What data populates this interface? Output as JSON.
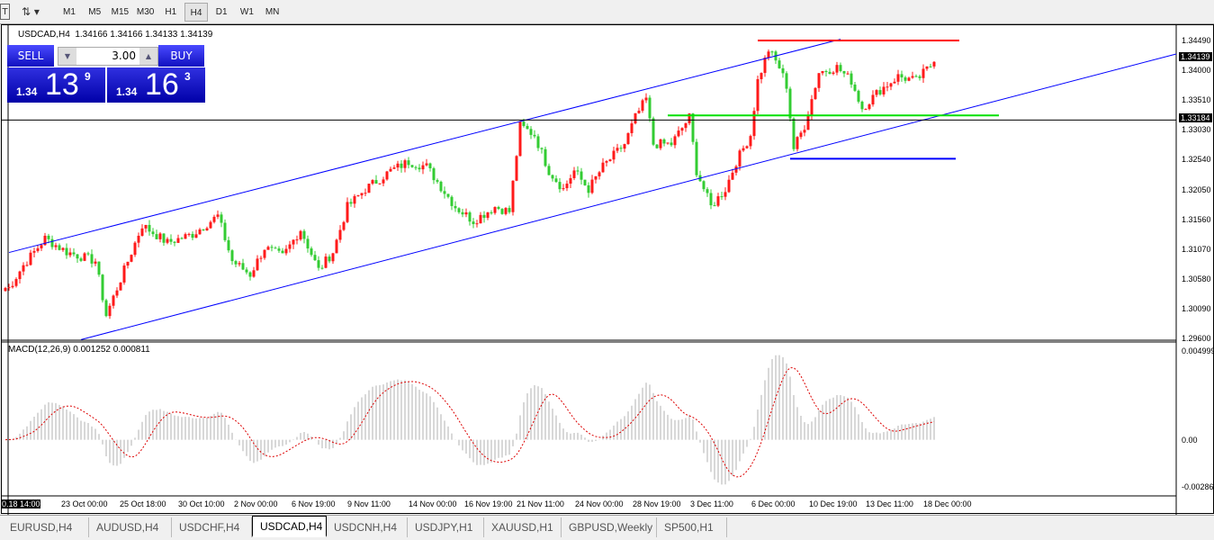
{
  "toolbar": {
    "timeframes": [
      "M1",
      "M5",
      "M15",
      "M30",
      "H1",
      "H4",
      "D1",
      "W1",
      "MN"
    ],
    "active": "H4"
  },
  "chart": {
    "info": "USDCAD,H4  1.34166 1.34166 1.34133 1.34139",
    "trade": {
      "sell_label": "SELL",
      "buy_label": "BUY",
      "lot": "3.00",
      "bid_prefix": "1.34",
      "bid_big": "13",
      "bid_small": "9",
      "ask_prefix": "1.34",
      "ask_big": "16",
      "ask_small": "3"
    },
    "price_labels": [
      "1.34490",
      "1.34000",
      "1.33510",
      "1.33030",
      "1.32540",
      "1.32050",
      "1.31560",
      "1.31070",
      "1.30580",
      "1.30090",
      "1.29600"
    ],
    "bid_tag": "1.34139",
    "line_tag": "1.33184",
    "macd_title": "MACD(12,26,9) 0.001252 0.000811",
    "macd_labels": [
      "0.004999",
      "0.00",
      "-0.002868"
    ],
    "time_labels": [
      "0.18 14:00",
      "23 Oct 00:00",
      "25 Oct 18:00",
      "30 Oct 10:00",
      "2 Nov 00:00",
      "6 Nov 19:00",
      "9 Nov 11:00",
      "14 Nov 00:00",
      "16 Nov 19:00",
      "21 Nov 11:00",
      "24 Nov 00:00",
      "28 Nov 19:00",
      "3 Dec 11:00",
      "6 Dec 00:00",
      "10 Dec 19:00",
      "13 Dec 11:00",
      "18 Dec 00:00"
    ]
  },
  "chart_data": {
    "type": "candlestick",
    "symbol": "USDCAD",
    "timeframe": "H4",
    "ylim": [
      1.296,
      1.3449
    ],
    "colors": {
      "up": "#ff1a1a",
      "down": "#33cc33",
      "macd_hist": "#b0b0b0",
      "macd_signal": "#dd0000"
    },
    "close_path": [
      [
        1,
        1.3043
      ],
      [
        5,
        1.308
      ],
      [
        11,
        1.3124
      ],
      [
        17,
        1.3102
      ],
      [
        25,
        1.3087
      ],
      [
        28,
        1.2998
      ],
      [
        32,
        1.3057
      ],
      [
        38,
        1.3146
      ],
      [
        45,
        1.3117
      ],
      [
        52,
        1.3131
      ],
      [
        59,
        1.3161
      ],
      [
        63,
        1.3087
      ],
      [
        68,
        1.3065
      ],
      [
        72,
        1.3109
      ],
      [
        77,
        1.3094
      ],
      [
        82,
        1.3139
      ],
      [
        87,
        1.3072
      ],
      [
        91,
        1.3102
      ],
      [
        95,
        1.3176
      ],
      [
        100,
        1.3205
      ],
      [
        107,
        1.3235
      ],
      [
        112,
        1.325
      ],
      [
        117,
        1.3242
      ],
      [
        125,
        1.3176
      ],
      [
        130,
        1.3153
      ],
      [
        136,
        1.3176
      ],
      [
        140,
        1.3168
      ],
      [
        143,
        1.3309
      ],
      [
        147,
        1.3294
      ],
      [
        151,
        1.3235
      ],
      [
        155,
        1.3205
      ],
      [
        158,
        1.3235
      ],
      [
        162,
        1.3205
      ],
      [
        166,
        1.3242
      ],
      [
        172,
        1.3279
      ],
      [
        175,
        1.3323
      ],
      [
        178,
        1.3353
      ],
      [
        180,
        1.3279
      ],
      [
        185,
        1.3279
      ],
      [
        190,
        1.3323
      ],
      [
        192,
        1.3235
      ],
      [
        196,
        1.3176
      ],
      [
        200,
        1.3205
      ],
      [
        203,
        1.325
      ],
      [
        207,
        1.3294
      ],
      [
        209,
        1.3383
      ],
      [
        212,
        1.3434
      ],
      [
        215,
        1.3405
      ],
      [
        217,
        1.3375
      ],
      [
        219,
        1.3272
      ],
      [
        222,
        1.3309
      ],
      [
        226,
        1.3397
      ],
      [
        231,
        1.3405
      ],
      [
        235,
        1.3383
      ],
      [
        238,
        1.3338
      ],
      [
        243,
        1.3368
      ],
      [
        248,
        1.339
      ],
      [
        253,
        1.3383
      ],
      [
        258,
        1.3414
      ]
    ],
    "lines": [
      {
        "kind": "trend",
        "color": "#0000ff",
        "p1": [
          1,
          1.3101
        ],
        "p2": [
          232,
          1.3451
        ]
      },
      {
        "kind": "trend",
        "color": "#0000ff",
        "p1": [
          21,
          1.2958
        ],
        "p2": [
          326,
          1.3428
        ]
      },
      {
        "kind": "horizontal-segment",
        "color": "#ff0000",
        "price": 1.3449,
        "from": 209,
        "to": 265
      },
      {
        "kind": "horizontal-segment",
        "color": "#00e000",
        "price": 1.3326,
        "from": 184,
        "to": 276
      },
      {
        "kind": "horizontal-segment",
        "color": "#0000ff",
        "price": 1.3255,
        "from": 218,
        "to": 264
      },
      {
        "kind": "horizontal",
        "color": "#000000",
        "price": 1.33184
      }
    ],
    "macd": {
      "fast": 12,
      "slow": 26,
      "signal": 9,
      "ylim": [
        -0.002868,
        0.004999
      ],
      "value": 0.001252,
      "signal_value": 0.000811
    }
  },
  "tabs": {
    "items": [
      "EURUSD,H4",
      "AUDUSD,H4",
      "USDCHF,H4",
      "USDCAD,H4",
      "USDCNH,H4",
      "USDJPY,H1",
      "XAUUSD,H1",
      "GBPUSD,Weekly",
      "SP500,H1"
    ],
    "active": 3
  }
}
